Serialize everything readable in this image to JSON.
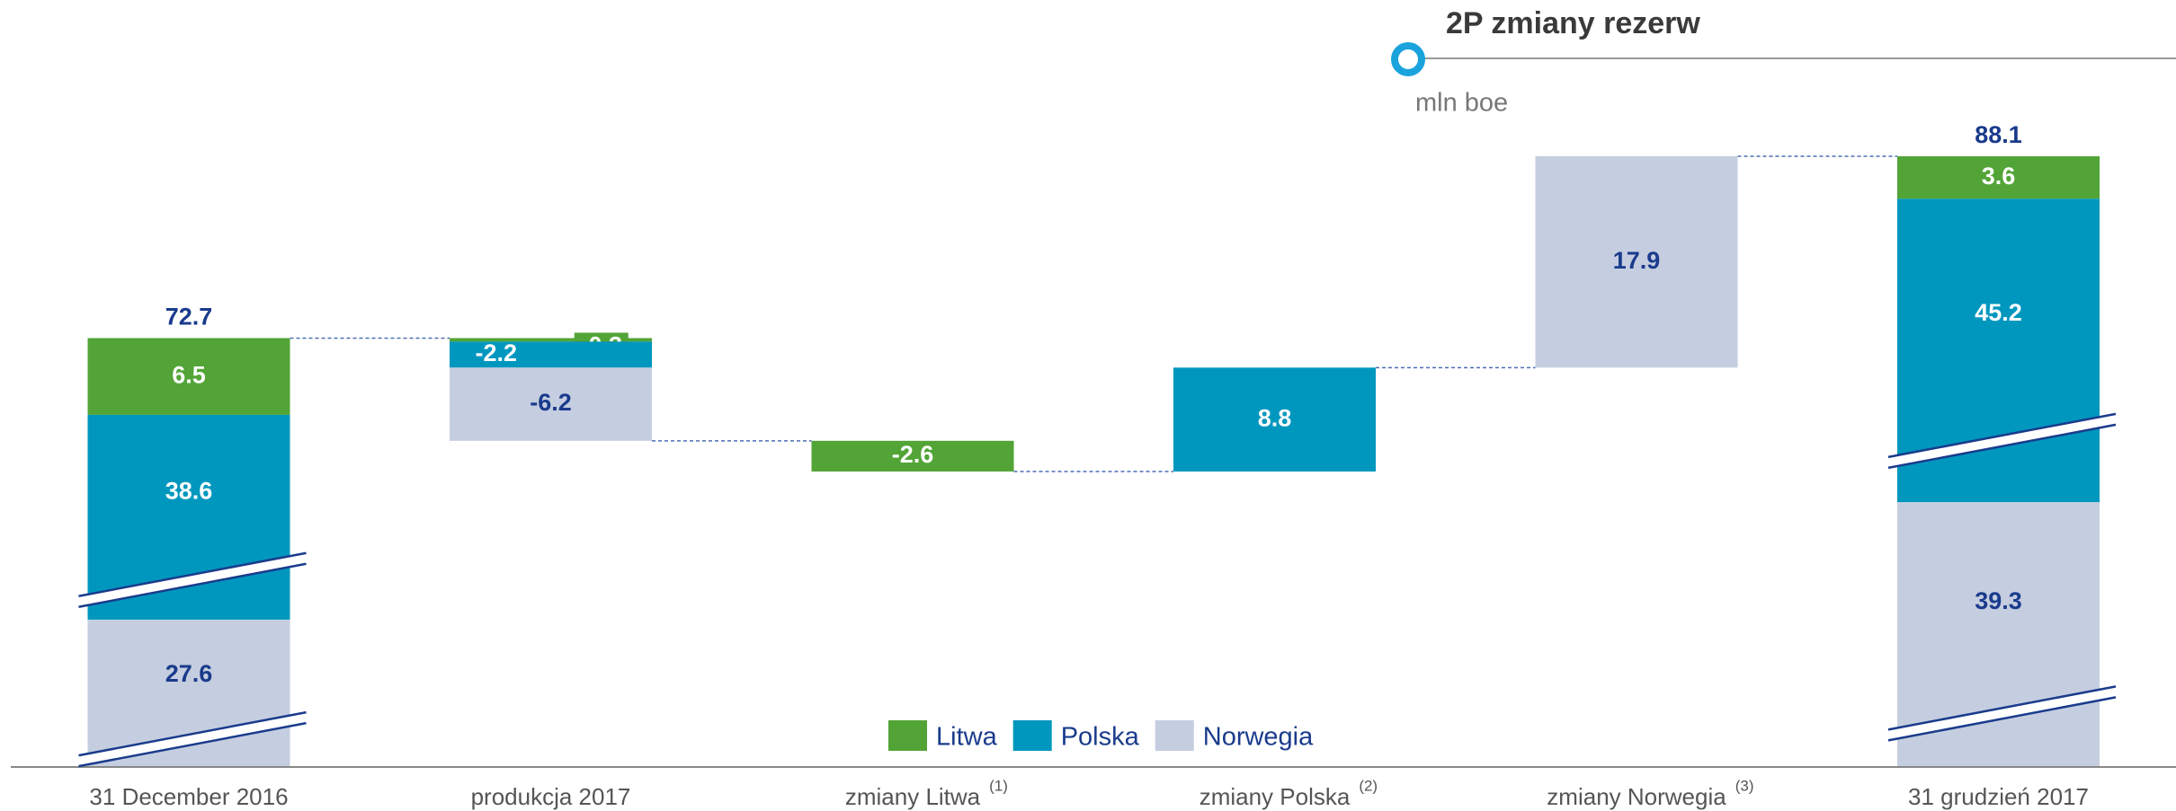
{
  "chart_data": {
    "type": "waterfall",
    "title": "2P zmiany rezerw",
    "subtitle": "mln boe",
    "categories": [
      "31 December 2016",
      "produkcja 2017",
      "zmiany Litwa",
      "zmiany Polska",
      "zmiany Norwegia",
      "31 grudzień 2017"
    ],
    "footnotes": [
      null,
      null,
      "(1)",
      "(2)",
      "(3)",
      null
    ],
    "totals": [
      72.7,
      null,
      null,
      null,
      null,
      88.1
    ],
    "series": [
      {
        "name": "Litwa",
        "color": "#52a436",
        "values": [
          6.5,
          -0.3,
          -2.6,
          null,
          null,
          3.6
        ]
      },
      {
        "name": "Polska",
        "color": "#0097be",
        "values": [
          38.6,
          -2.2,
          null,
          8.8,
          null,
          45.2
        ]
      },
      {
        "name": "Norwegia",
        "color": "#c5cee0",
        "values": [
          27.6,
          -6.2,
          null,
          null,
          17.9,
          39.3
        ]
      }
    ]
  }
}
